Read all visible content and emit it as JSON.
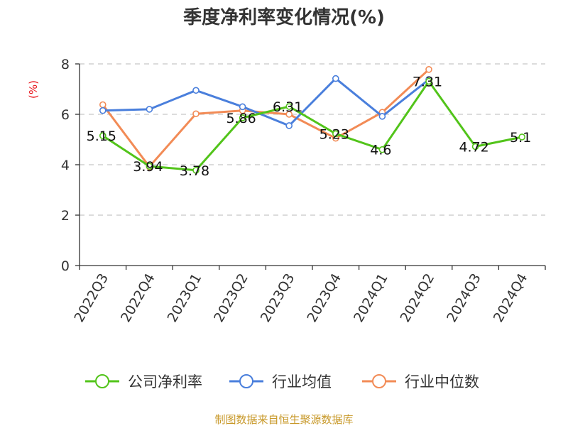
{
  "chart_data": {
    "type": "line",
    "title": "季度净利率变化情况(%)",
    "ylabel": "(%)",
    "xlabel": "",
    "ylim": [
      0,
      8
    ],
    "yticks": [
      0,
      2,
      4,
      6,
      8
    ],
    "grid": true,
    "legend_position": "bottom",
    "categories": [
      "2022Q3",
      "2022Q4",
      "2023Q1",
      "2023Q2",
      "2023Q3",
      "2023Q4",
      "2024Q1",
      "2024Q2",
      "2024Q3",
      "2024Q4"
    ],
    "series": [
      {
        "name": "公司净利率",
        "color": "#52c41a",
        "values": [
          5.15,
          3.94,
          3.78,
          5.86,
          6.31,
          5.23,
          4.6,
          7.31,
          4.72,
          5.1
        ],
        "labels": [
          "5.15",
          "3.94",
          "3.78",
          "5.86",
          "6.31",
          "5.23",
          "4.6",
          "7.31",
          "4.72",
          "5.1"
        ]
      },
      {
        "name": "行业均值",
        "color": "#4a7fdc",
        "values": [
          6.15,
          6.2,
          6.95,
          6.3,
          5.55,
          7.42,
          5.92,
          7.38,
          null,
          null
        ]
      },
      {
        "name": "行业中位数",
        "color": "#f28b56",
        "values": [
          6.38,
          3.92,
          6.02,
          6.15,
          6.0,
          5.05,
          6.08,
          7.78,
          null,
          null
        ]
      }
    ]
  },
  "footer": {
    "source": "制图数据来自恒生聚源数据库"
  }
}
